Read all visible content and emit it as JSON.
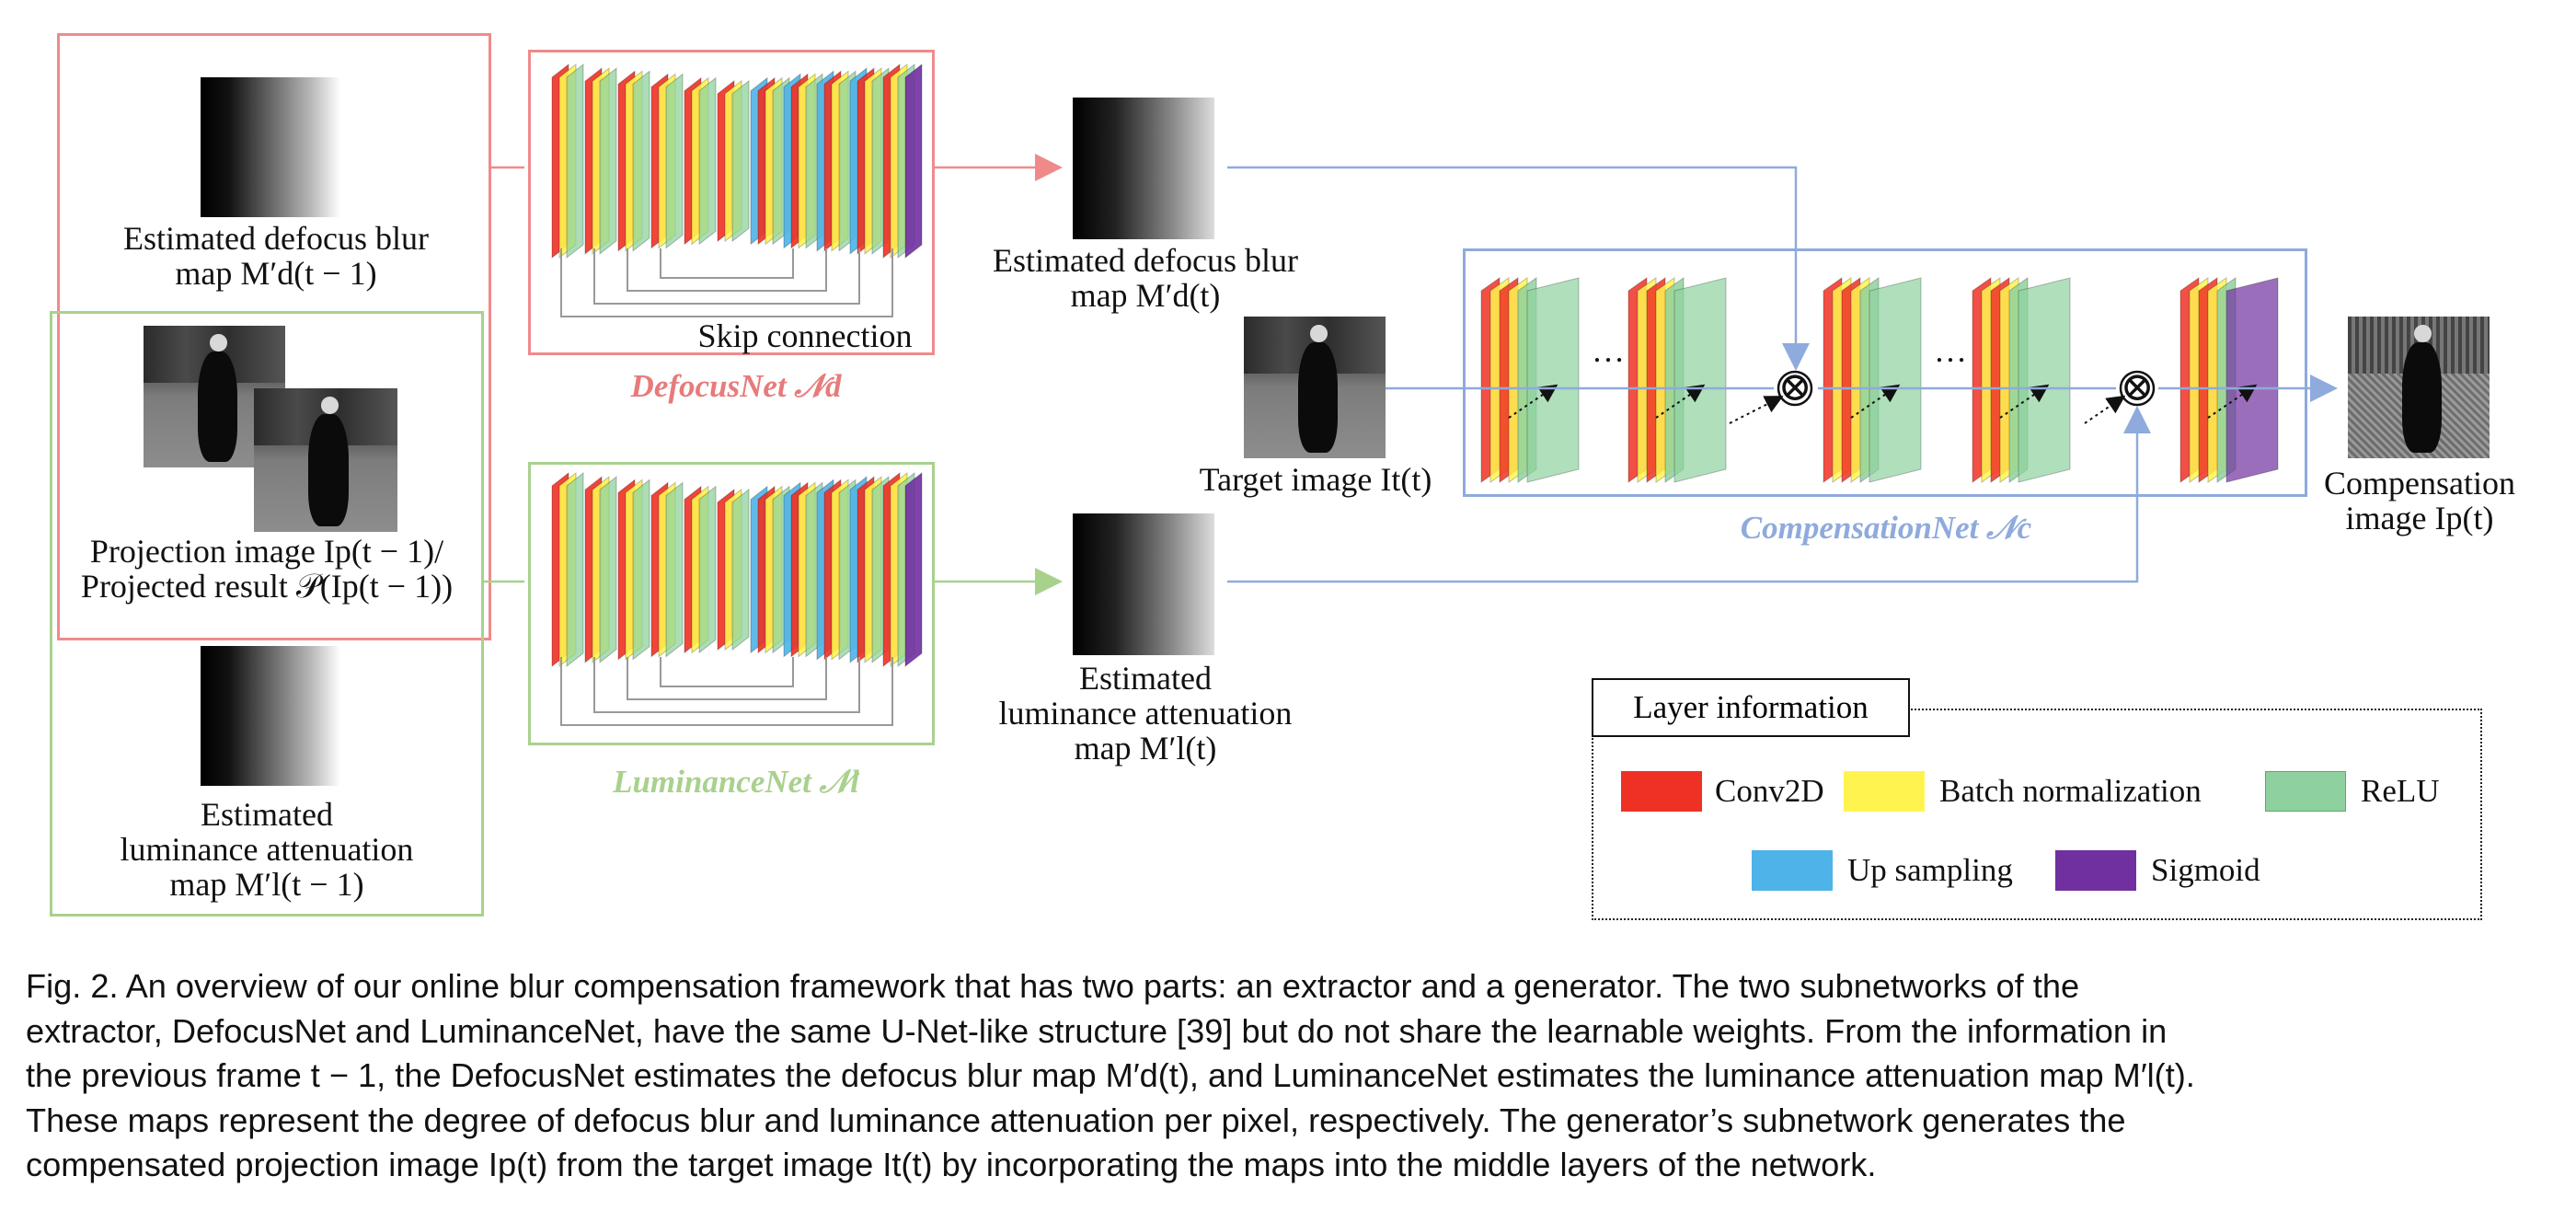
{
  "figure": {
    "colors": {
      "defocus": "#f08a8a",
      "luminance": "#a9d18e",
      "compensation": "#8faadc",
      "conv2d": "#ee3124",
      "batchnorm": "#fff44f",
      "relu": "#8fd19e",
      "upsampling": "#4eb3e8",
      "sigmoid": "#7030a0"
    },
    "inputs": {
      "defocus_map_prev": [
        "Estimated defocus blur",
        "map M′d(t − 1)"
      ],
      "projection": [
        "Projection image Ip(t − 1)/",
        "Projected result 𝒫(Ip(t − 1))"
      ],
      "luminance_map_prev": [
        "Estimated",
        "luminance attenuation",
        "map M′l(t − 1)"
      ]
    },
    "defocusnet": {
      "title": "DefocusNet 𝒩d",
      "skip_label": "Skip connection"
    },
    "luminancenet": {
      "title": "LuminanceNet 𝒩l"
    },
    "outputs": {
      "defocus_map": [
        "Estimated defocus blur",
        "map M′d(t)"
      ],
      "luminance_map": [
        "Estimated",
        "luminance attenuation",
        "map M′l(t)"
      ]
    },
    "target_image": "Target image It(t)",
    "compensationnet": {
      "title": "CompensationNet 𝒩c",
      "ellipsis": "…",
      "multiply": "⊗"
    },
    "compensation_image": [
      "Compensation",
      "image Ip(t)"
    ],
    "legend": {
      "title": "Layer information",
      "items": [
        {
          "label": "Conv2D",
          "color": "#ee3124"
        },
        {
          "label": "Batch normalization",
          "color": "#fff44f"
        },
        {
          "label": "ReLU",
          "color": "#8fd19e"
        },
        {
          "label": "Up sampling",
          "color": "#4eb3e8"
        },
        {
          "label": "Sigmoid",
          "color": "#7030a0"
        }
      ]
    }
  },
  "caption": [
    "Fig. 2.  An overview of our online blur compensation framework that has two parts: an extractor and a generator.  The two subnetworks of the",
    "extractor, DefocusNet and LuminanceNet, have the same U-Net-like structure [39] but do not share the learnable weights. From the information in",
    "the previous frame t − 1, the DefocusNet estimates the defocus blur map M′d(t), and LuminanceNet estimates the luminance attenuation map M′l(t).",
    "These maps represent the degree of defocus blur and luminance attenuation per pixel, respectively.  The generator’s subnetwork generates the",
    "compensated projection image Ip(t) from the target image It(t) by incorporating the maps into the middle layers of the network."
  ]
}
